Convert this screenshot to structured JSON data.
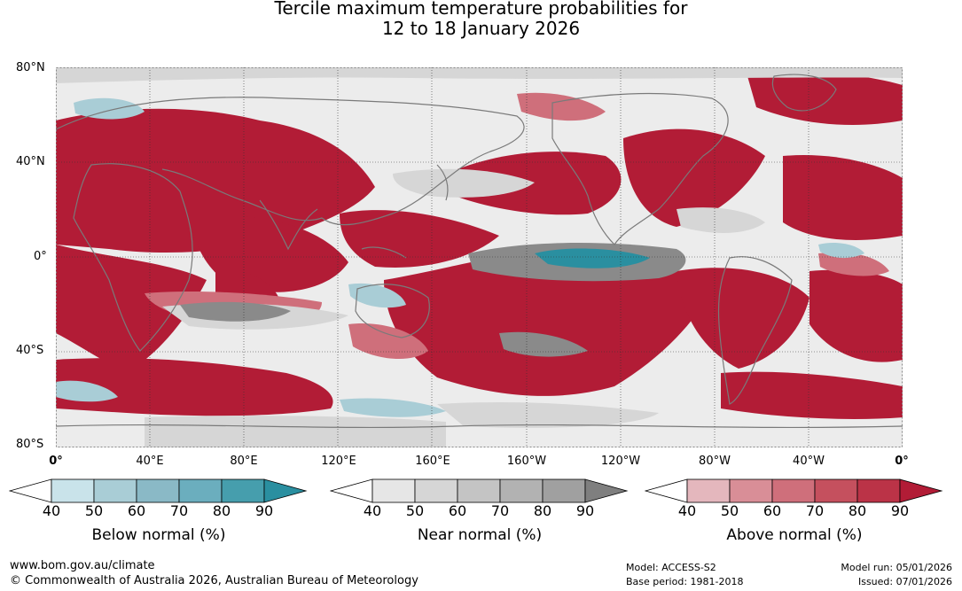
{
  "title": {
    "line1": "Tercile maximum temperature probabilities for",
    "line2": "12 to 18 January 2026"
  },
  "axes": {
    "lat_labels": [
      "80°N",
      "40°N",
      "0°",
      "40°S",
      "80°S"
    ],
    "lon_labels": [
      "0°",
      "40°E",
      "80°E",
      "120°E",
      "160°E",
      "160°W",
      "120°W",
      "80°W",
      "40°W",
      "0°"
    ]
  },
  "colorbars": [
    {
      "title": "Below normal (%)",
      "ticks": [
        "40",
        "50",
        "60",
        "70",
        "80",
        "90"
      ],
      "colors": [
        "#c9e3ea",
        "#a9cdd6",
        "#8ab9c6",
        "#6baebe",
        "#469ead",
        "#2a8fa0"
      ]
    },
    {
      "title": "Near normal (%)",
      "ticks": [
        "40",
        "50",
        "60",
        "70",
        "80",
        "90"
      ],
      "colors": [
        "#e6e6e6",
        "#d6d6d6",
        "#c4c4c4",
        "#b2b2b2",
        "#a0a0a0",
        "#7f7f7f"
      ]
    },
    {
      "title": "Above normal (%)",
      "ticks": [
        "40",
        "50",
        "60",
        "70",
        "80",
        "90"
      ],
      "colors": [
        "#e4b7bd",
        "#d98e97",
        "#cf6f7b",
        "#c5505e",
        "#bb3347",
        "#b21c36"
      ]
    }
  ],
  "footer": {
    "website": "www.bom.gov.au/climate",
    "copyright": "© Commonwealth of Australia 2026, Australian Bureau of Meteorology",
    "model": "Model: ACCESS-S2",
    "base_period": "Base period: 1981-2018",
    "model_run": "Model run: 05/01/2026",
    "issued": "Issued: 07/01/2026"
  },
  "map_colors": {
    "above": "#b21c36",
    "above_light": "#cf6f7b",
    "above_pale": "#e4b7bd",
    "near_light": "#d6d6d6",
    "near_dark": "#8a8a8a",
    "below": "#2a8fa0",
    "below_light": "#a9cdd6",
    "coast": "#7a7a7a",
    "background": "#ececec"
  }
}
